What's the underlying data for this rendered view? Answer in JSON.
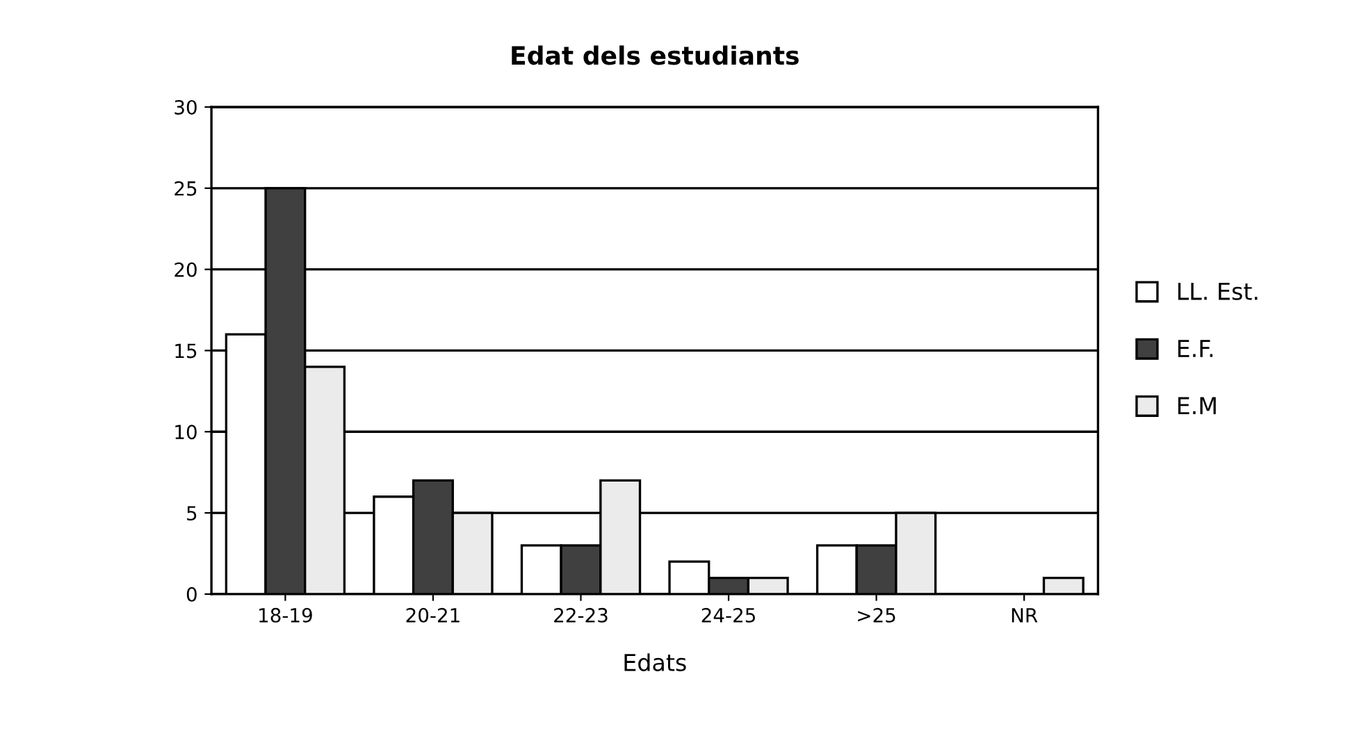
{
  "chart_data": {
    "type": "bar",
    "title": "Edat dels estudiants",
    "xlabel": "Edats",
    "categories": [
      "18-19",
      "20-21",
      "22-23",
      "24-25",
      ">25",
      "NR"
    ],
    "series": [
      {
        "name": "LL. Est.",
        "color": "#ffffff",
        "values": [
          16,
          6,
          3,
          2,
          3,
          0
        ]
      },
      {
        "name": "E.F.",
        "color": "#404040",
        "values": [
          25,
          7,
          3,
          1,
          3,
          0
        ]
      },
      {
        "name": "E.M",
        "color": "#ebebeb",
        "values": [
          14,
          5,
          7,
          1,
          5,
          1
        ]
      }
    ],
    "ylim": [
      0,
      30
    ],
    "yticks": [
      0,
      5,
      10,
      15,
      20,
      25,
      30
    ],
    "grid": "y",
    "legend": "right"
  }
}
